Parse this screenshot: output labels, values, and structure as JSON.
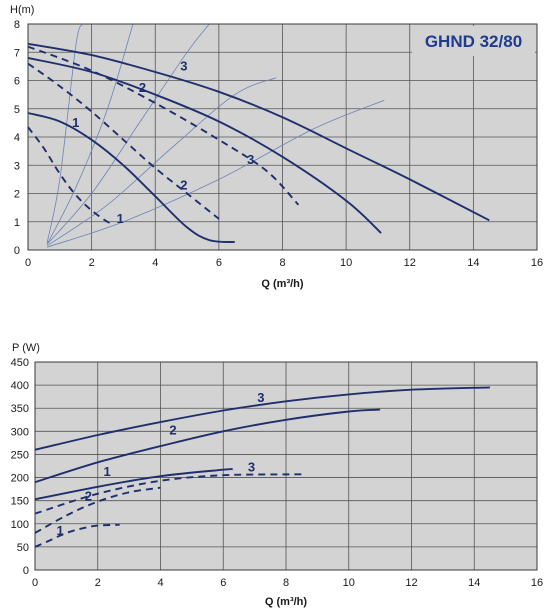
{
  "colors": {
    "plot_bg": "#d3d3d3",
    "grid": "#555555",
    "curve": "#1f2f6e",
    "system": "#6a84b8",
    "title": "#1f3c8c"
  },
  "chart_data": [
    {
      "type": "line",
      "title": "GHND 32/80",
      "ylabel": "H(m)",
      "xlabel": "Q (m³/h)",
      "xlim": [
        0,
        16
      ],
      "ylim": [
        0,
        8
      ],
      "x_ticks": [
        "0",
        "2",
        "4",
        "6",
        "8",
        "10",
        "12",
        "14",
        "16"
      ],
      "y_ticks": [
        "0",
        "1",
        "2",
        "3",
        "4",
        "5",
        "6",
        "7",
        "8"
      ],
      "grid": true,
      "series": [
        {
          "name": "3",
          "style": "solid",
          "label_at": [
            4.9,
            6.35
          ],
          "points": [
            [
              0,
              7.3
            ],
            [
              2,
              6.9
            ],
            [
              4,
              6.3
            ],
            [
              6,
              5.6
            ],
            [
              8,
              4.7
            ],
            [
              10,
              3.6
            ],
            [
              12,
              2.5
            ],
            [
              14.5,
              1.05
            ]
          ]
        },
        {
          "name": "2",
          "style": "solid",
          "label_at": [
            3.6,
            5.6
          ],
          "points": [
            [
              0,
              6.8
            ],
            [
              2,
              6.3
            ],
            [
              4,
              5.5
            ],
            [
              6,
              4.55
            ],
            [
              8,
              3.3
            ],
            [
              10,
              1.75
            ],
            [
              11.1,
              0.6
            ]
          ]
        },
        {
          "name": "1",
          "style": "solid",
          "label_at": [
            1.5,
            4.35
          ],
          "points": [
            [
              0,
              4.85
            ],
            [
              1,
              4.55
            ],
            [
              2,
              3.9
            ],
            [
              3,
              3.0
            ],
            [
              4,
              1.9
            ],
            [
              5,
              0.8
            ],
            [
              5.7,
              0.35
            ],
            [
              6.5,
              0.28
            ]
          ]
        },
        {
          "name": "3",
          "style": "dashed",
          "label_at": [
            7.0,
            3.05
          ],
          "points": [
            [
              0,
              7.2
            ],
            [
              2,
              6.35
            ],
            [
              4,
              5.2
            ],
            [
              6,
              3.9
            ],
            [
              7.5,
              2.8
            ],
            [
              8.5,
              1.6
            ]
          ]
        },
        {
          "name": "2",
          "style": "dashed",
          "label_at": [
            4.9,
            2.15
          ],
          "points": [
            [
              0,
              6.6
            ],
            [
              1,
              5.8
            ],
            [
              2,
              4.9
            ],
            [
              3,
              3.9
            ],
            [
              4,
              2.9
            ],
            [
              5,
              2.0
            ],
            [
              6,
              1.1
            ]
          ]
        },
        {
          "name": "1",
          "style": "dashed",
          "label_at": [
            2.9,
            0.95
          ],
          "points": [
            [
              0,
              4.35
            ],
            [
              0.5,
              3.6
            ],
            [
              1,
              2.7
            ],
            [
              1.5,
              1.95
            ],
            [
              2,
              1.4
            ],
            [
              2.5,
              1.0
            ],
            [
              2.7,
              0.95
            ]
          ]
        }
      ],
      "system_curves": [
        {
          "points": [
            [
              0.6,
              0.25
            ],
            [
              1.0,
              2.5
            ],
            [
              1.5,
              7.2
            ],
            [
              1.7,
              8.0
            ]
          ]
        },
        {
          "points": [
            [
              0.6,
              0.2
            ],
            [
              1.5,
              2.2
            ],
            [
              2.5,
              5.0
            ],
            [
              3.3,
              8.0
            ]
          ]
        },
        {
          "points": [
            [
              0.6,
              0.2
            ],
            [
              2.0,
              2.0
            ],
            [
              3.5,
              4.5
            ],
            [
              5.0,
              7.0
            ],
            [
              5.7,
              8.0
            ]
          ]
        },
        {
          "points": [
            [
              0.6,
              0.15
            ],
            [
              2.5,
              1.6
            ],
            [
              4.5,
              3.6
            ],
            [
              6.5,
              5.5
            ],
            [
              7.8,
              6.1
            ]
          ]
        },
        {
          "points": [
            [
              0.6,
              0.1
            ],
            [
              3.0,
              1.0
            ],
            [
              6.0,
              2.5
            ],
            [
              9.0,
              4.3
            ],
            [
              11.2,
              5.3
            ]
          ]
        }
      ]
    },
    {
      "type": "line",
      "title": "",
      "ylabel": "P (W)",
      "xlabel": "Q (m³/h)",
      "xlim": [
        0,
        16
      ],
      "ylim": [
        0,
        450
      ],
      "x_ticks": [
        "0",
        "2",
        "4",
        "6",
        "8",
        "10",
        "12",
        "14",
        "16"
      ],
      "y_ticks": [
        "0",
        "50",
        "100",
        "150",
        "200",
        "250",
        "300",
        "350",
        "400",
        "450"
      ],
      "grid": true,
      "series": [
        {
          "name": "3",
          "style": "solid",
          "label_at": [
            7.2,
            363
          ],
          "points": [
            [
              0,
              260
            ],
            [
              2,
              292
            ],
            [
              4,
              320
            ],
            [
              6,
              345
            ],
            [
              8,
              365
            ],
            [
              10,
              380
            ],
            [
              12,
              390
            ],
            [
              14.5,
              395
            ]
          ]
        },
        {
          "name": "2",
          "style": "solid",
          "label_at": [
            4.4,
            293
          ],
          "points": [
            [
              0,
              190
            ],
            [
              2,
              233
            ],
            [
              4,
              268
            ],
            [
              6,
              300
            ],
            [
              8,
              325
            ],
            [
              10,
              343
            ],
            [
              11,
              347
            ]
          ]
        },
        {
          "name": "1",
          "style": "solid",
          "label_at": [
            2.3,
            203
          ],
          "points": [
            [
              0,
              153
            ],
            [
              2,
              180
            ],
            [
              4,
              203
            ],
            [
              6,
              217
            ],
            [
              6.3,
              218
            ]
          ]
        },
        {
          "name": "3",
          "style": "dashed",
          "label_at": [
            6.9,
            213
          ],
          "points": [
            [
              0,
              122
            ],
            [
              2,
              165
            ],
            [
              4,
              193
            ],
            [
              6,
              205
            ],
            [
              8.5,
              207
            ]
          ]
        },
        {
          "name": "2",
          "style": "dashed",
          "label_at": [
            1.7,
            150
          ],
          "points": [
            [
              0,
              80
            ],
            [
              1,
              118
            ],
            [
              2,
              148
            ],
            [
              3,
              168
            ],
            [
              4,
              178
            ]
          ]
        },
        {
          "name": "1",
          "style": "dashed",
          "label_at": [
            0.8,
            76
          ],
          "points": [
            [
              0,
              50
            ],
            [
              0.5,
              65
            ],
            [
              1,
              80
            ],
            [
              1.5,
              90
            ],
            [
              2,
              96
            ],
            [
              2.7,
              98
            ]
          ]
        }
      ]
    }
  ]
}
